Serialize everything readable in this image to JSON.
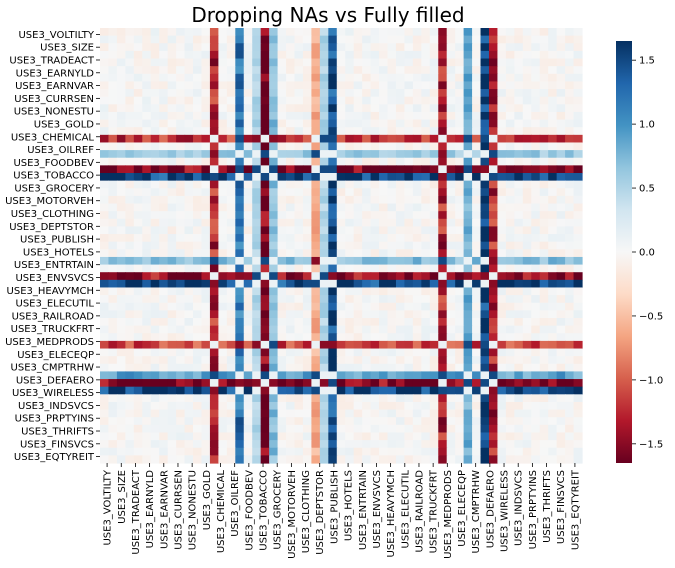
{
  "chart_data": {
    "type": "heatmap",
    "title": "Dropping NAs vs Fully filled",
    "xlabel": "",
    "ylabel": "",
    "labels": [
      "USE3_VOLTILTY",
      "USE3_SIZE",
      "USE3_TRADEACT",
      "USE3_EARNYLD",
      "USE3_EARNVAR",
      "USE3_CURRSEN",
      "USE3_NONESTU",
      "USE3_GOLD",
      "USE3_CHEMICAL",
      "USE3_OILREF",
      "USE3_FOODBEV",
      "USE3_TOBACCO",
      "USE3_GROCERY",
      "USE3_MOTORVEH",
      "USE3_CLOTHING",
      "USE3_DEPTSTOR",
      "USE3_PUBLISH",
      "USE3_HOTELS",
      "USE3_ENTRTAIN",
      "USE3_ENVSVCS",
      "USE3_HEAVYMCH",
      "USE3_ELECUTIL",
      "USE3_RAILROAD",
      "USE3_TRUCKFRT",
      "USE3_MEDPRODS",
      "USE3_ELECEQP",
      "USE3_CMPTRHW",
      "USE3_DEFAERO",
      "USE3_WIRELESS",
      "USE3_INDSVCS",
      "USE3_PRPTYINS",
      "USE3_THRIFTS",
      "USE3_FINSVCS",
      "USE3_EQTYREIT"
    ],
    "grid_size": 57,
    "notable_columns": [
      {
        "index": 13,
        "base": -1.3
      },
      {
        "index": 16,
        "base": 1.2
      },
      {
        "index": 18,
        "base": 0.5
      },
      {
        "index": 19,
        "base": -1.6
      },
      {
        "index": 20,
        "base": 0.7
      },
      {
        "index": 25,
        "base": -0.6
      },
      {
        "index": 26,
        "base": 0.5
      },
      {
        "index": 27,
        "base": 1.5
      },
      {
        "index": 40,
        "base": -1.3
      },
      {
        "index": 43,
        "base": 0.8
      },
      {
        "index": 45,
        "base": 1.6
      },
      {
        "index": 46,
        "base": -1.3
      }
    ],
    "notable_rows": [
      {
        "index": 14,
        "base": -1.2
      },
      {
        "index": 16,
        "base": 0.6
      },
      {
        "index": 18,
        "base": -1.6
      },
      {
        "index": 19,
        "base": 1.5
      },
      {
        "index": 30,
        "base": 0.7
      },
      {
        "index": 32,
        "base": -1.5
      },
      {
        "index": 33,
        "base": 1.5
      },
      {
        "index": 41,
        "base": -1.1
      },
      {
        "index": 45,
        "base": 0.9
      },
      {
        "index": 46,
        "base": -1.6
      },
      {
        "index": 47,
        "base": 1.6
      }
    ],
    "colorbar": {
      "vmin": -1.65,
      "vmax": 1.65,
      "ticks": [
        -1.5,
        -1.0,
        -0.5,
        0.0,
        0.5,
        1.0,
        1.5
      ],
      "tick_labels": [
        "−1.5",
        "−1.0",
        "−0.5",
        "0.0",
        "0.5",
        "1.0",
        "1.5"
      ],
      "colormap": "RdBu"
    }
  }
}
